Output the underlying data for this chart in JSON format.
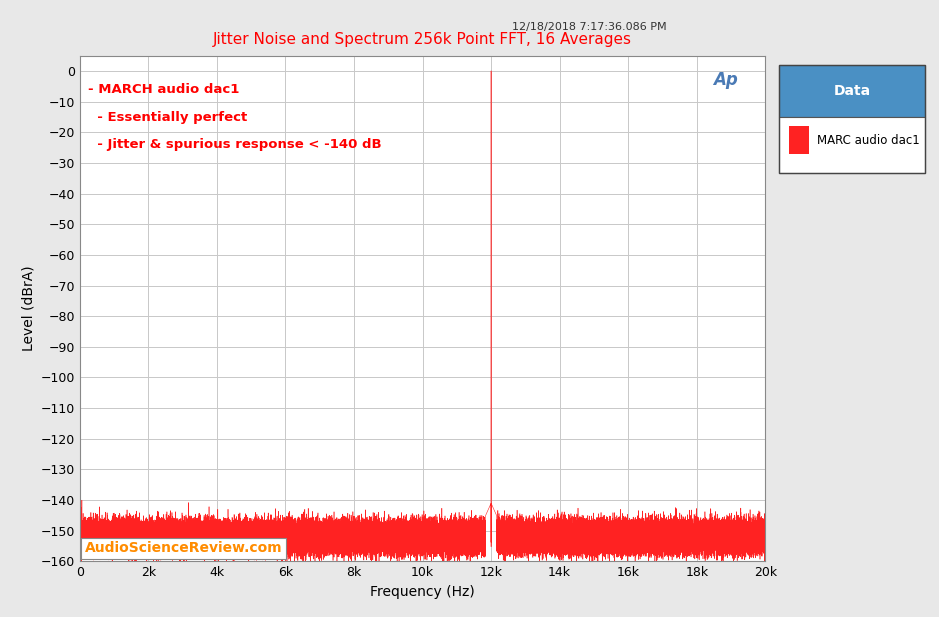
{
  "title": "Jitter Noise and Spectrum 256k Point FFT, 16 Averages",
  "title_color": "#ff0000",
  "datetime_text": "12/18/2018 7:17:36.086 PM",
  "xlabel": "Frequency (Hz)",
  "ylabel": "Level (dBrA)",
  "xlim": [
    0,
    20000
  ],
  "ylim": [
    -160,
    5
  ],
  "yticks": [
    0,
    -10,
    -20,
    -30,
    -40,
    -50,
    -60,
    -70,
    -80,
    -90,
    -100,
    -110,
    -120,
    -130,
    -140,
    -150,
    -160
  ],
  "xticks": [
    0,
    2000,
    4000,
    6000,
    8000,
    10000,
    12000,
    14000,
    16000,
    18000,
    20000
  ],
  "xticklabels": [
    "0",
    "2k",
    "4k",
    "6k",
    "8k",
    "10k",
    "12k",
    "14k",
    "16k",
    "18k",
    "20k"
  ],
  "line_color": "#ff2222",
  "noise_floor": -152,
  "noise_std": 2.5,
  "main_peak_freq": 12000,
  "main_peak_level": 0,
  "annotations": [
    "- MARCH audio dac1",
    "  - Essentially perfect",
    "  - Jitter & spurious response < -140 dB"
  ],
  "annotation_color": "#ff0000",
  "watermark_text": "AudioScienceReview.com",
  "watermark_color": "#ff8c00",
  "legend_title": "Data",
  "legend_label": "MARC audio dac1",
  "legend_title_bg": "#4a90c4",
  "bg_color": "#e8e8e8",
  "plot_bg_color": "#ffffff",
  "grid_color": "#c8c8c8",
  "ap_logo_color": "#4a7ab5"
}
